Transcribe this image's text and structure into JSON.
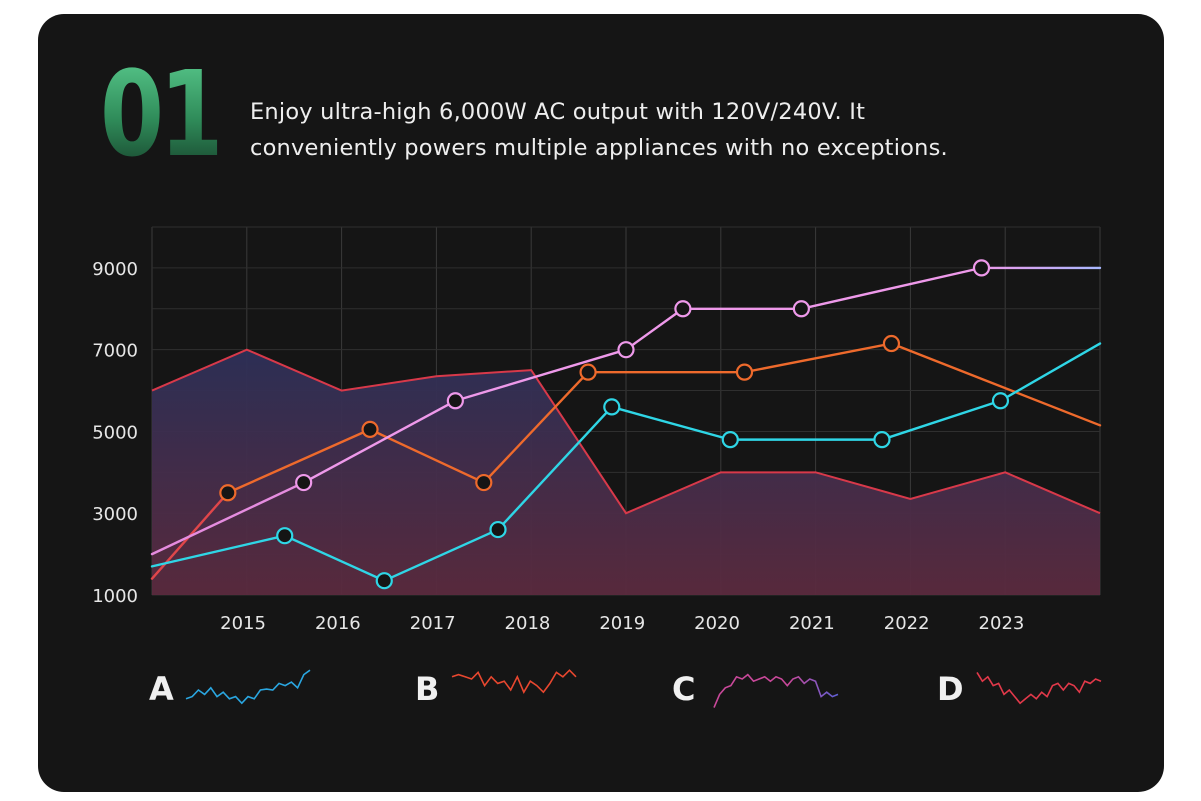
{
  "header": {
    "number": "01",
    "headline_line1": "Enjoy ultra-high 6,000W AC output with 120V/240V. It",
    "headline_line2": "conveniently powers multiple appliances with no exceptions."
  },
  "chart_data": {
    "type": "line",
    "x_range": [
      2014.0,
      2024.0
    ],
    "y_range": [
      1000,
      10000
    ],
    "x_ticks": [
      2015,
      2016,
      2017,
      2018,
      2019,
      2020,
      2021,
      2022,
      2023
    ],
    "y_ticks": [
      1000,
      3000,
      5000,
      7000,
      9000
    ],
    "grid": true,
    "area_series": {
      "color": "#d8394a",
      "fill_top": "#2d3058",
      "fill_bottom": "#5b2a3e",
      "points": [
        [
          2014.0,
          6000
        ],
        [
          2015.0,
          7000
        ],
        [
          2016.0,
          6000
        ],
        [
          2017.0,
          6350
        ],
        [
          2018.0,
          6500
        ],
        [
          2019.0,
          3000
        ],
        [
          2020.0,
          4000
        ],
        [
          2021.0,
          4000
        ],
        [
          2022.0,
          3350
        ],
        [
          2023.0,
          4000
        ],
        [
          2024.0,
          3000
        ]
      ]
    },
    "series": [
      {
        "color": "#e0464a",
        "line_color": "#ee6a2c",
        "points": [
          [
            2014.0,
            1400
          ],
          [
            2014.8,
            3500
          ],
          [
            2016.3,
            5050
          ],
          [
            2017.5,
            3750
          ],
          [
            2018.6,
            6450
          ],
          [
            2020.25,
            6450
          ],
          [
            2021.8,
            7150
          ],
          [
            2024.0,
            5150
          ]
        ],
        "markers": [
          1,
          2,
          3,
          4,
          5,
          6
        ]
      },
      {
        "color": "#e58cdf",
        "line_color": "#ee99ea",
        "points": [
          [
            2014.0,
            2000
          ],
          [
            2015.6,
            3750
          ],
          [
            2017.2,
            5750
          ],
          [
            2019.0,
            7000
          ],
          [
            2019.6,
            8000
          ],
          [
            2020.85,
            8000
          ],
          [
            2022.75,
            9000
          ],
          [
            2024.0,
            9000
          ]
        ],
        "markers": [
          1,
          2,
          3,
          4,
          5,
          6
        ],
        "end_color": "#a8b8ff"
      },
      {
        "color": "#2fd6e6",
        "line_color": "#2fd6e6",
        "points": [
          [
            2014.0,
            1700
          ],
          [
            2015.4,
            2450
          ],
          [
            2016.45,
            1350
          ],
          [
            2017.65,
            2600
          ],
          [
            2018.85,
            5600
          ],
          [
            2020.1,
            4800
          ],
          [
            2021.7,
            4800
          ],
          [
            2022.95,
            5750
          ],
          [
            2024.0,
            7150
          ]
        ],
        "markers": [
          1,
          2,
          3,
          4,
          5,
          6,
          7
        ]
      }
    ]
  },
  "sparklines": [
    {
      "label": "A",
      "color": "#2aa6e0",
      "values": [
        3,
        3.5,
        5,
        4,
        5.5,
        3.5,
        4.5,
        3,
        3.5,
        2,
        3.5,
        3,
        5,
        5.2,
        5,
        6.5,
        6,
        6.8,
        5.5,
        8.5,
        9.5
      ]
    },
    {
      "label": "B",
      "color": "#e8472f",
      "values": [
        8,
        8.5,
        8,
        7.5,
        9,
        6,
        8,
        6.5,
        7,
        5,
        8,
        4.5,
        7,
        6,
        4.5,
        6.5,
        9,
        8,
        9.5,
        8
      ]
    },
    {
      "label": "C",
      "color": "#c9489a",
      "end_color": "#5e60d6",
      "values": [
        1,
        4,
        5.5,
        6,
        8,
        7.5,
        8.5,
        7,
        7.5,
        8,
        7,
        8,
        7.5,
        6,
        7.5,
        8,
        6.5,
        7.5,
        7,
        3.5,
        4.5,
        3.5,
        4
      ]
    },
    {
      "label": "D",
      "color": "#e2394a",
      "values": [
        9,
        7,
        8,
        6,
        6.5,
        4,
        5,
        3.5,
        2,
        3,
        4,
        3,
        4.5,
        3.5,
        6,
        6.5,
        5,
        6.5,
        6,
        4.5,
        7,
        6.5,
        7.5,
        7
      ]
    }
  ]
}
